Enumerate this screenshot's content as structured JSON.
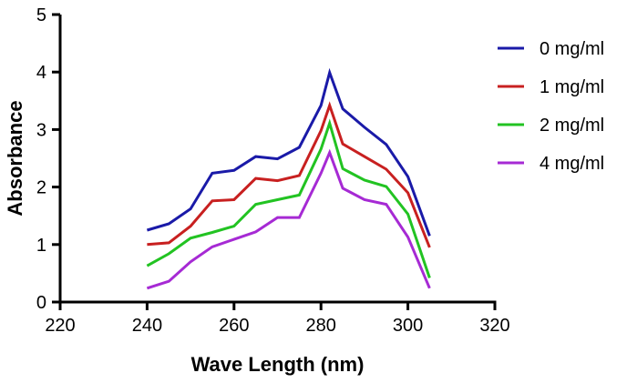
{
  "chart_data": {
    "type": "line",
    "title": "",
    "xlabel": "Wave Length (nm)",
    "ylabel": "Absorbance",
    "xlim": [
      220,
      320
    ],
    "ylim": [
      0,
      5
    ],
    "xticks": [
      220,
      240,
      260,
      280,
      300,
      320
    ],
    "yticks": [
      0,
      1,
      2,
      3,
      4,
      5
    ],
    "grid": false,
    "legend_position": "right",
    "x": [
      240,
      245,
      250,
      255,
      260,
      265,
      270,
      275,
      280,
      282,
      285,
      290,
      295,
      300,
      305
    ],
    "series": [
      {
        "name": "0 mg/ml",
        "color": "#1a1aa8",
        "values": [
          1.25,
          1.36,
          1.62,
          2.24,
          2.29,
          2.53,
          2.49,
          2.69,
          3.42,
          3.99,
          3.36,
          3.04,
          2.74,
          2.18,
          1.15
        ]
      },
      {
        "name": "1 mg/ml",
        "color": "#c82020",
        "values": [
          1.0,
          1.03,
          1.32,
          1.76,
          1.78,
          2.15,
          2.11,
          2.2,
          2.98,
          3.42,
          2.75,
          2.53,
          2.31,
          1.9,
          0.95
        ]
      },
      {
        "name": "2 mg/ml",
        "color": "#22c322",
        "values": [
          0.63,
          0.84,
          1.11,
          1.21,
          1.32,
          1.7,
          1.78,
          1.86,
          2.66,
          3.11,
          2.32,
          2.12,
          2.01,
          1.53,
          0.42
        ]
      },
      {
        "name": "4 mg/ml",
        "color": "#a62ad4",
        "values": [
          0.24,
          0.36,
          0.7,
          0.96,
          1.09,
          1.22,
          1.47,
          1.47,
          2.24,
          2.6,
          1.98,
          1.78,
          1.7,
          1.13,
          0.24
        ]
      }
    ]
  }
}
